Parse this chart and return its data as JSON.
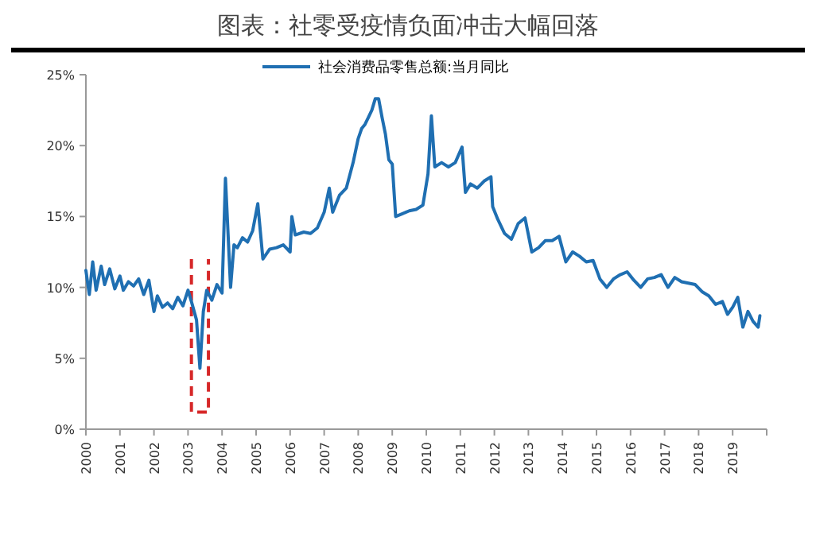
{
  "chart_data": {
    "type": "line",
    "title": "图表：社零受疫情负面冲击大幅回落",
    "legend": "top",
    "xlim": [
      2000,
      2020
    ],
    "xticks": [
      2000,
      2001,
      2002,
      2003,
      2004,
      2005,
      2006,
      2007,
      2008,
      2009,
      2010,
      2011,
      2012,
      2013,
      2014,
      2015,
      2016,
      2017,
      2018,
      2019
    ],
    "ylim": [
      0,
      25
    ],
    "yticks": [
      {
        "value": 0,
        "label": "0%"
      },
      {
        "value": 5,
        "label": "5%"
      },
      {
        "value": 10,
        "label": "10%"
      },
      {
        "value": 15,
        "label": "15%"
      },
      {
        "value": 20,
        "label": "20%"
      },
      {
        "value": 25,
        "label": "25%"
      }
    ],
    "series": [
      {
        "name": "社会消费品零售总额:当月同比",
        "color": "#1f6fb2",
        "x": [
          2000.0,
          2000.1,
          2000.2,
          2000.3,
          2000.45,
          2000.55,
          2000.7,
          2000.85,
          2001.0,
          2001.1,
          2001.25,
          2001.4,
          2001.55,
          2001.7,
          2001.85,
          2002.0,
          2002.1,
          2002.25,
          2002.4,
          2002.55,
          2002.7,
          2002.85,
          2003.0,
          2003.1,
          2003.25,
          2003.35,
          2003.45,
          2003.55,
          2003.7,
          2003.85,
          2004.0,
          2004.1,
          2004.25,
          2004.35,
          2004.45,
          2004.6,
          2004.75,
          2004.9,
          2005.05,
          2005.2,
          2005.4,
          2005.6,
          2005.8,
          2006.0,
          2006.05,
          2006.15,
          2006.4,
          2006.6,
          2006.8,
          2007.0,
          2007.15,
          2007.25,
          2007.45,
          2007.65,
          2007.85,
          2008.0,
          2008.1,
          2008.2,
          2008.3,
          2008.4,
          2008.5,
          2008.6,
          2008.7,
          2008.8,
          2008.9,
          2009.0,
          2009.1,
          2009.3,
          2009.5,
          2009.7,
          2009.9,
          2010.05,
          2010.15,
          2010.25,
          2010.45,
          2010.65,
          2010.85,
          2011.05,
          2011.15,
          2011.3,
          2011.5,
          2011.7,
          2011.9,
          2011.95,
          2012.1,
          2012.3,
          2012.5,
          2012.7,
          2012.9,
          2013.1,
          2013.3,
          2013.5,
          2013.7,
          2013.9,
          2014.1,
          2014.3,
          2014.5,
          2014.7,
          2014.9,
          2015.1,
          2015.3,
          2015.5,
          2015.7,
          2015.9,
          2016.1,
          2016.3,
          2016.5,
          2016.7,
          2016.9,
          2017.1,
          2017.3,
          2017.5,
          2017.7,
          2017.9,
          2018.1,
          2018.3,
          2018.5,
          2018.7,
          2018.85,
          2019.0,
          2019.15,
          2019.3,
          2019.45,
          2019.6,
          2019.75,
          2019.8
        ],
        "values": [
          11.2,
          9.5,
          11.8,
          9.8,
          11.5,
          10.2,
          11.3,
          9.9,
          10.8,
          9.8,
          10.4,
          10.1,
          10.6,
          9.5,
          10.5,
          8.3,
          9.4,
          8.6,
          8.9,
          8.5,
          9.3,
          8.7,
          9.8,
          9.0,
          7.7,
          4.3,
          8.3,
          9.8,
          9.1,
          10.2,
          9.6,
          17.7,
          10.0,
          13.0,
          12.8,
          13.5,
          13.2,
          14.0,
          15.9,
          12.0,
          12.7,
          12.8,
          13.0,
          12.5,
          15.0,
          13.7,
          13.9,
          13.8,
          14.2,
          15.3,
          17.0,
          15.3,
          16.5,
          17.0,
          18.8,
          20.5,
          21.2,
          21.5,
          22.0,
          22.5,
          23.3,
          23.3,
          22.0,
          20.8,
          19.0,
          18.7,
          15.0,
          15.2,
          15.4,
          15.5,
          15.8,
          18.0,
          22.1,
          18.5,
          18.8,
          18.5,
          18.8,
          19.9,
          16.7,
          17.3,
          17.0,
          17.5,
          17.8,
          15.7,
          14.8,
          13.8,
          13.4,
          14.5,
          14.9,
          12.5,
          12.8,
          13.3,
          13.3,
          13.6,
          11.8,
          12.5,
          12.2,
          11.8,
          11.9,
          10.6,
          10.0,
          10.6,
          10.9,
          11.1,
          10.5,
          10.0,
          10.6,
          10.7,
          10.9,
          10.0,
          10.7,
          10.4,
          10.3,
          10.2,
          9.7,
          9.4,
          8.8,
          9.0,
          8.1,
          8.6,
          9.3,
          7.2,
          8.3,
          7.6,
          7.2,
          8.0
        ]
      }
    ]
  }
}
